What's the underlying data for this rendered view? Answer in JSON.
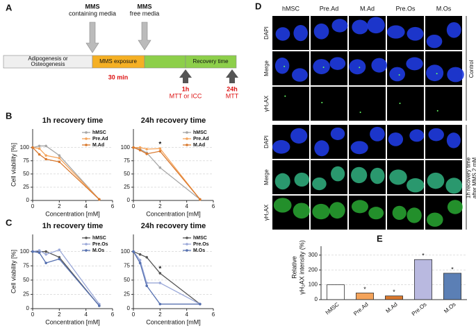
{
  "panels": [
    "A",
    "B",
    "C",
    "D",
    "E"
  ],
  "timeline": {
    "differentiation": [
      "Adipogenesis or",
      "Osteogenesis"
    ],
    "exposure": "MMS exposure",
    "recovery": "Recovery time",
    "duration": "30 min",
    "media": [
      {
        "agent": "MMS",
        "label": "containing media"
      },
      {
        "agent": "MMS",
        "label": "free media"
      }
    ],
    "timepoints": [
      {
        "time": "1h",
        "assay": "MTT or ICC"
      },
      {
        "time": "24h",
        "assay": "MTT"
      }
    ]
  },
  "micrographs": {
    "columns": [
      "hMSC",
      "Pre.Ad",
      "M.Ad",
      "Pre.Os",
      "M.Os"
    ],
    "groups": [
      {
        "label": [
          "Control"
        ],
        "rows": [
          "DAPI",
          "Merge",
          "γH₂AX"
        ]
      },
      {
        "label": [
          "1h recovery time",
          "after MMS 2 mM"
        ],
        "rows": [
          "DAPI",
          "Merge",
          "γH₂AX"
        ]
      }
    ]
  },
  "chart_data": [
    {
      "type": "line",
      "title": "1h recovery time",
      "ylabel": "Cell viability [%]",
      "xlabel": "Concentration [mM]",
      "x": [
        0,
        0.5,
        1,
        2,
        5
      ],
      "xlim": [
        0,
        6
      ],
      "xticks": [
        0,
        2,
        4,
        6
      ],
      "ylim": [
        0,
        135
      ],
      "yticks": [
        0,
        25,
        50,
        75,
        100
      ],
      "grid": true,
      "legend": "upper right",
      "series": [
        {
          "name": "hMSC",
          "color": "#a6a6a6",
          "values": [
            100,
            103,
            103,
            85,
            2
          ]
        },
        {
          "name": "Pre.Ad",
          "color": "#f4a35a",
          "values": [
            100,
            98,
            85,
            80,
            2
          ]
        },
        {
          "name": "M.Ad",
          "color": "#d9782d",
          "values": [
            100,
            87,
            78,
            73,
            2
          ]
        }
      ]
    },
    {
      "type": "line",
      "title": "24h recovery time",
      "xlabel": "Concentration [mM]",
      "x": [
        0,
        0.5,
        1,
        2,
        5
      ],
      "xlim": [
        0,
        6
      ],
      "xticks": [
        0,
        2,
        4,
        6
      ],
      "ylim": [
        0,
        135
      ],
      "yticks": [
        0,
        25,
        50,
        75,
        100
      ],
      "grid": true,
      "legend": "upper right",
      "annotations": [
        {
          "text": "*",
          "x": 2
        }
      ],
      "series": [
        {
          "name": "hMSC",
          "color": "#a6a6a6",
          "values": [
            100,
            97,
            90,
            62,
            2
          ]
        },
        {
          "name": "Pre.Ad",
          "color": "#f4a35a",
          "values": [
            100,
            100,
            97,
            98,
            2
          ]
        },
        {
          "name": "M.Ad",
          "color": "#d9782d",
          "values": [
            100,
            95,
            88,
            93,
            2
          ]
        }
      ]
    },
    {
      "type": "line",
      "title": "1h recovery time",
      "ylabel": "Cell viability [%]",
      "xlabel": "Concentration [mM]",
      "x": [
        0,
        0.5,
        1,
        2,
        5
      ],
      "xlim": [
        0,
        6
      ],
      "xticks": [
        0,
        2,
        4,
        6
      ],
      "ylim": [
        0,
        130
      ],
      "yticks": [
        0,
        25,
        50,
        75,
        100
      ],
      "grid": true,
      "legend": "upper right",
      "series": [
        {
          "name": "hMSC",
          "color": "#555555",
          "values": [
            100,
            100,
            100,
            90,
            5
          ]
        },
        {
          "name": "Pre.Os",
          "color": "#9aa8d8",
          "values": [
            100,
            102,
            95,
            103,
            8
          ]
        },
        {
          "name": "M.Os",
          "color": "#5570b0",
          "values": [
            100,
            98,
            80,
            87,
            5
          ]
        }
      ]
    },
    {
      "type": "line",
      "title": "24h recovery time",
      "xlabel": "Concentration [mM]",
      "x": [
        0,
        0.5,
        1,
        2,
        5
      ],
      "xlim": [
        0,
        6
      ],
      "xticks": [
        0,
        2,
        4,
        6
      ],
      "ylim": [
        0,
        130
      ],
      "yticks": [
        0,
        25,
        50,
        75,
        100
      ],
      "grid": true,
      "legend": "upper right",
      "annotations": [
        {
          "text": "*",
          "x": 2
        }
      ],
      "series": [
        {
          "name": "hMSC",
          "color": "#555555",
          "values": [
            100,
            95,
            90,
            62,
            8
          ]
        },
        {
          "name": "Pre.Os",
          "color": "#9aa8d8",
          "values": [
            100,
            85,
            45,
            45,
            8
          ]
        },
        {
          "name": "M.Os",
          "color": "#5570b0",
          "values": [
            100,
            80,
            40,
            8,
            8
          ]
        }
      ]
    },
    {
      "type": "bar",
      "ylabel": [
        "Relative",
        "γH₂AX intensity (%)"
      ],
      "categories": [
        "hMSC",
        "Pre.Ad",
        "M.Ad",
        "Pre.Os",
        "M.Os"
      ],
      "values": [
        100,
        45,
        25,
        270,
        178
      ],
      "colors": [
        "#ffffff",
        "#f4a35a",
        "#d9782d",
        "#b9b9e0",
        "#5b7fb5"
      ],
      "marks": [
        null,
        "*",
        "*",
        "*",
        "*"
      ],
      "ylim": [
        0,
        360
      ],
      "yticks": [
        0,
        100,
        200,
        300
      ],
      "grid": true
    }
  ]
}
